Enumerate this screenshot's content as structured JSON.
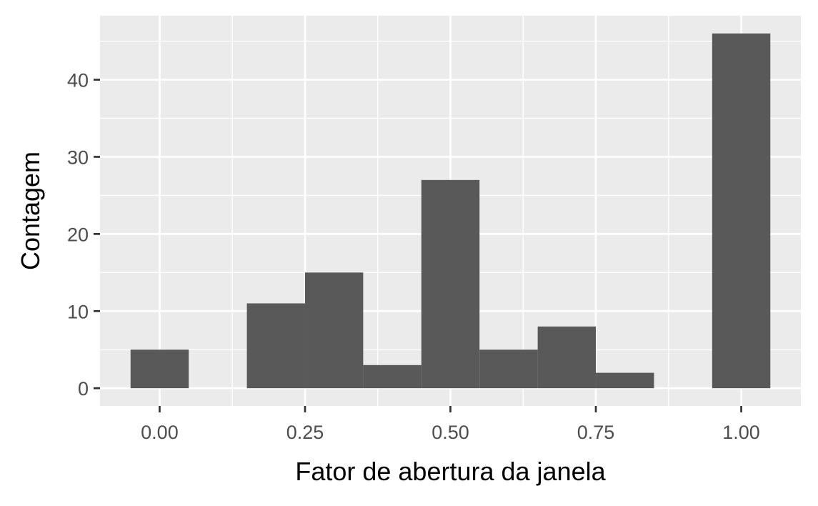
{
  "chart_data": {
    "type": "bar",
    "subtype": "histogram",
    "xlabel": "Fator de abertura da janela",
    "ylabel": "Contagem",
    "bin_width": 0.1,
    "bins": [
      {
        "start": -0.05,
        "end": 0.05,
        "count": 5
      },
      {
        "start": 0.05,
        "end": 0.15,
        "count": 0
      },
      {
        "start": 0.15,
        "end": 0.25,
        "count": 11
      },
      {
        "start": 0.25,
        "end": 0.35,
        "count": 15
      },
      {
        "start": 0.35,
        "end": 0.45,
        "count": 3
      },
      {
        "start": 0.45,
        "end": 0.55,
        "count": 27
      },
      {
        "start": 0.55,
        "end": 0.65,
        "count": 5
      },
      {
        "start": 0.65,
        "end": 0.75,
        "count": 8
      },
      {
        "start": 0.75,
        "end": 0.85,
        "count": 2
      },
      {
        "start": 0.85,
        "end": 0.95,
        "count": 0
      },
      {
        "start": 0.95,
        "end": 1.05,
        "count": 46
      }
    ],
    "x_ticks": [
      {
        "value": 0.0,
        "label": "0.00"
      },
      {
        "value": 0.25,
        "label": "0.25"
      },
      {
        "value": 0.5,
        "label": "0.50"
      },
      {
        "value": 0.75,
        "label": "0.75"
      },
      {
        "value": 1.0,
        "label": "1.00"
      }
    ],
    "y_ticks": [
      {
        "value": 0,
        "label": "0"
      },
      {
        "value": 10,
        "label": "10"
      },
      {
        "value": 20,
        "label": "20"
      },
      {
        "value": 30,
        "label": "30"
      },
      {
        "value": 40,
        "label": "40"
      }
    ],
    "xlim": [
      -0.1025,
      1.1025
    ],
    "ylim": [
      -2.3,
      48.3
    ],
    "grid": true,
    "legend": "none",
    "colors": {
      "bar_fill": "#595959",
      "panel_background": "#ebebeb",
      "grid_line": "#ffffff",
      "tick_mark": "#333333",
      "tick_label": "#4d4d4d",
      "axis_title": "#000000"
    }
  }
}
